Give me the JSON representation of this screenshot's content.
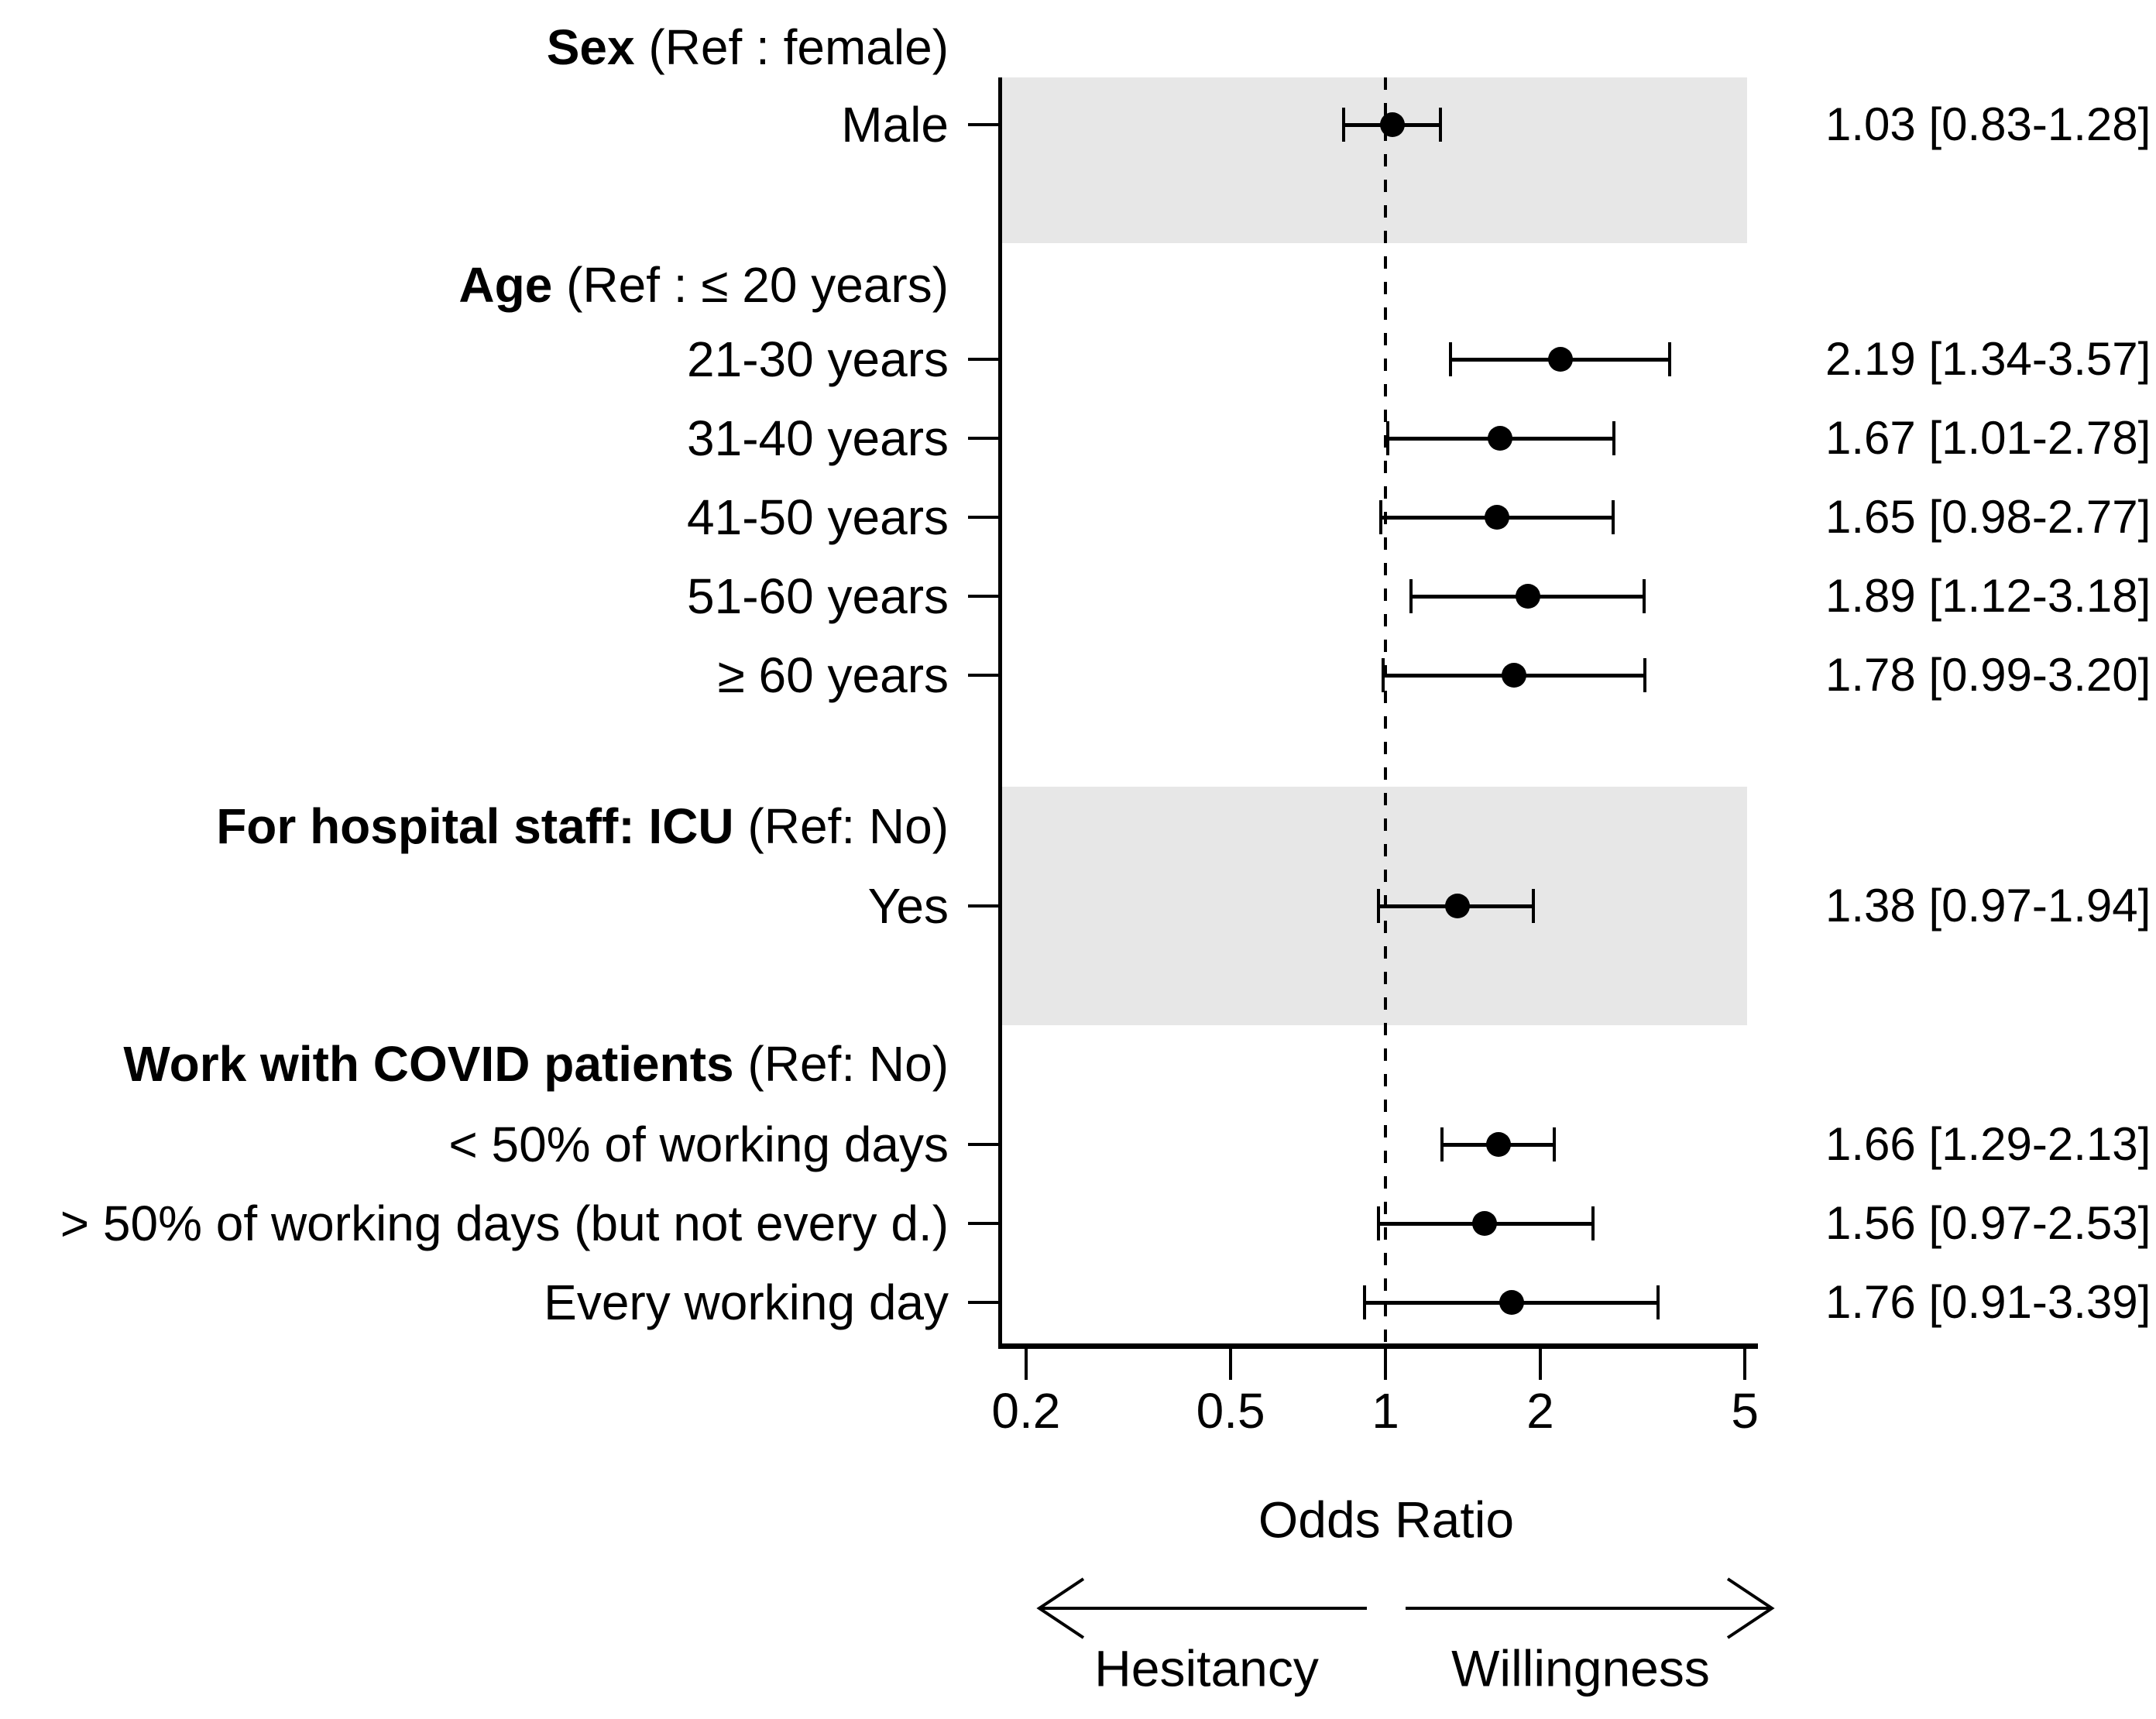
{
  "chart_data": {
    "type": "forest",
    "title": "",
    "xlabel": "Odds Ratio",
    "x_scale": "log",
    "x_ticks": [
      0.2,
      0.5,
      1,
      2,
      5
    ],
    "x_range": [
      0.18,
      5.05
    ],
    "reference_line": 1,
    "grid": "off",
    "legend": "none",
    "point_color": "#000000",
    "shading_color": "#e7e7e7",
    "direction": {
      "left": "Hesitancy",
      "right": "Willingness"
    },
    "groups": [
      {
        "heading": {
          "bold": "Sex",
          "rest": " (Ref : female)"
        },
        "shaded": true,
        "rows": [
          {
            "label": "Male",
            "or": 1.03,
            "lo": 0.83,
            "hi": 1.28,
            "text": "1.03 [0.83-1.28]"
          }
        ]
      },
      {
        "heading": {
          "bold": "Age",
          "rest": " (Ref : ≤ 20 years)"
        },
        "shaded": false,
        "rows": [
          {
            "label": "21-30 years",
            "or": 2.19,
            "lo": 1.34,
            "hi": 3.57,
            "text": "2.19 [1.34-3.57]"
          },
          {
            "label": "31-40 years",
            "or": 1.67,
            "lo": 1.01,
            "hi": 2.78,
            "text": "1.67 [1.01-2.78]"
          },
          {
            "label": "41-50 years",
            "or": 1.65,
            "lo": 0.98,
            "hi": 2.77,
            "text": "1.65 [0.98-2.77]"
          },
          {
            "label": "51-60 years",
            "or": 1.89,
            "lo": 1.12,
            "hi": 3.18,
            "text": "1.89 [1.12-3.18]"
          },
          {
            "label": "≥ 60 years",
            "or": 1.78,
            "lo": 0.99,
            "hi": 3.2,
            "text": "1.78 [0.99-3.20]"
          }
        ]
      },
      {
        "heading": {
          "bold": "For hospital staff: ICU",
          "rest": " (Ref: No)"
        },
        "shaded": true,
        "rows": [
          {
            "label": "Yes",
            "or": 1.38,
            "lo": 0.97,
            "hi": 1.94,
            "text": "1.38 [0.97-1.94]"
          }
        ]
      },
      {
        "heading": {
          "bold": "Work with COVID patients",
          "rest": " (Ref: No)"
        },
        "shaded": false,
        "rows": [
          {
            "label": "< 50% of working days",
            "or": 1.66,
            "lo": 1.29,
            "hi": 2.13,
            "text": "1.66 [1.29-2.13]"
          },
          {
            "label": "> 50% of working days (but not every d.)",
            "or": 1.56,
            "lo": 0.97,
            "hi": 2.53,
            "text": "1.56 [0.97-2.53]"
          },
          {
            "label": "Every working day",
            "or": 1.76,
            "lo": 0.91,
            "hi": 3.39,
            "text": "1.76 [0.91-3.39]"
          }
        ]
      }
    ]
  }
}
